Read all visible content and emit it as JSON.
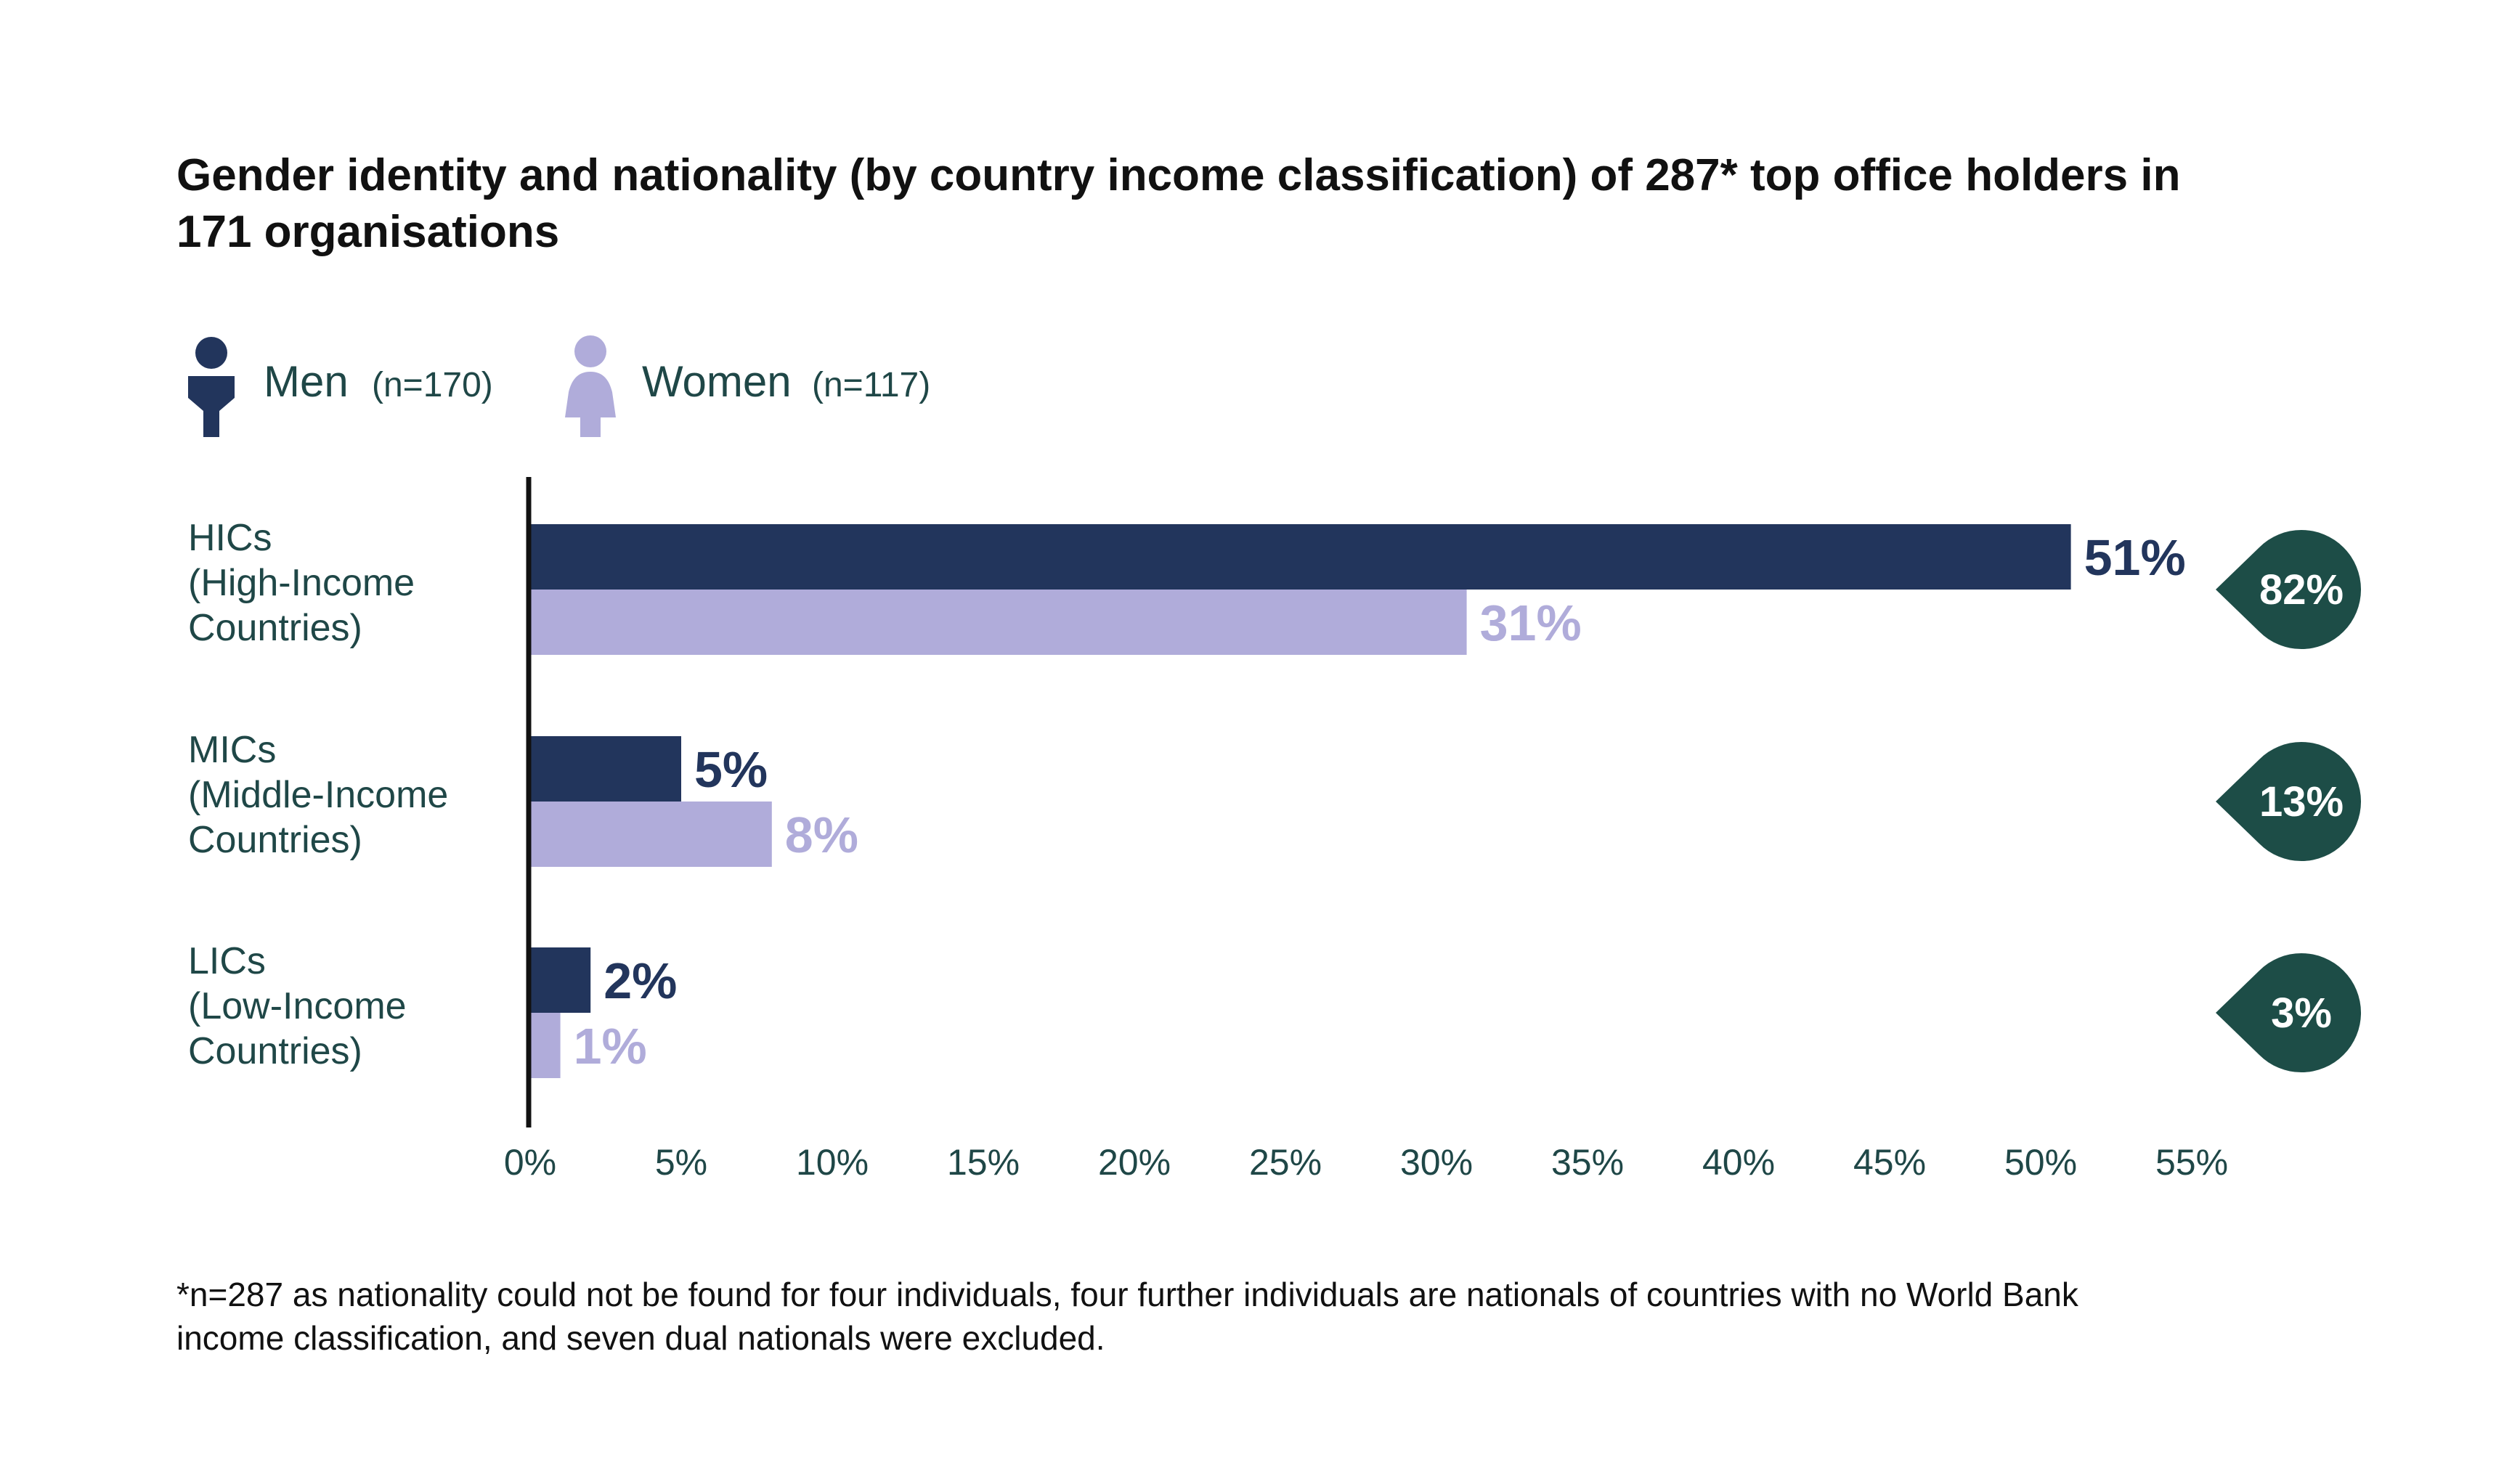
{
  "chart_data": {
    "type": "bar",
    "orientation": "horizontal",
    "title_lines": [
      "Gender identity and nationality (by country income classification) of 287* top office holders in",
      "171 organisations"
    ],
    "categories": [
      {
        "lines": [
          "HICs",
          "(High-Income",
          "Countries)"
        ]
      },
      {
        "lines": [
          "MICs",
          "(Middle-Income",
          "Countries)"
        ]
      },
      {
        "lines": [
          "LICs",
          "(Low-Income",
          "Countries)"
        ]
      }
    ],
    "series": [
      {
        "name": "Men",
        "n_label": "(n=170)",
        "color": "#22355c",
        "values": [
          51,
          5,
          2
        ],
        "labels": [
          "51%",
          "5%",
          "2%"
        ]
      },
      {
        "name": "Women",
        "n_label": "(n=117)",
        "color": "#b0acda",
        "values": [
          31,
          8,
          1
        ],
        "labels": [
          "31%",
          "8%",
          "1%"
        ]
      }
    ],
    "totals": {
      "values": [
        82,
        13,
        3
      ],
      "labels": [
        "82%",
        "13%",
        "3%"
      ],
      "color": "#1d4d47"
    },
    "x_ticks": [
      "0%",
      "5%",
      "10%",
      "15%",
      "20%",
      "25%",
      "30%",
      "35%",
      "40%",
      "45%",
      "50%",
      "55%"
    ],
    "xlim": [
      0,
      55
    ],
    "grid": false,
    "legend_position": "top-left",
    "footnote_lines": [
      "*n=287 as nationality could not be found for four individuals, four further individuals are nationals of countries with no World Bank",
      "income classification, and seven dual nationals were excluded."
    ]
  }
}
